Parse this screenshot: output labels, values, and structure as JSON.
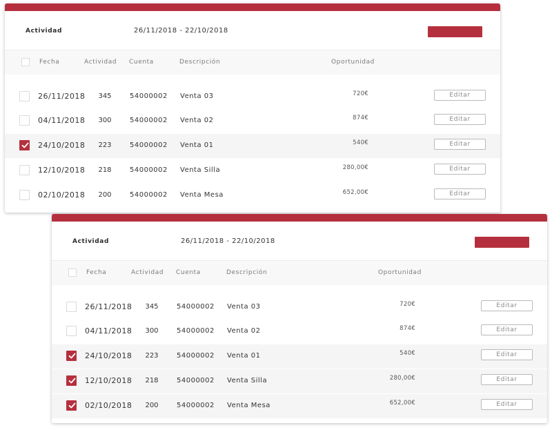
{
  "colors": {
    "accent": "#b5303e"
  },
  "cards": [
    {
      "title": "Actividad",
      "date_range": "26/11/2018 - 22/10/2018",
      "columns": [
        "Fecha",
        "Actividad",
        "Cuenta",
        "Descripción",
        "Oportunidad"
      ],
      "rows": [
        {
          "date": "26/11/2018",
          "activity": "345",
          "account": "54000002",
          "description": "Venta 03",
          "opportunity": "720€",
          "edit": "Editar",
          "checked": false
        },
        {
          "date": "04/11/2018",
          "activity": "300",
          "account": "54000002",
          "description": "Venta 02",
          "opportunity": "874€",
          "edit": "Editar",
          "checked": false
        },
        {
          "date": "24/10/2018",
          "activity": "223",
          "account": "54000002",
          "description": "Venta 01",
          "opportunity": "540€",
          "edit": "Editar",
          "checked": true
        },
        {
          "date": "12/10/2018",
          "activity": "218",
          "account": "54000002",
          "description": "Venta Silla",
          "opportunity": "280,00€",
          "edit": "Editar",
          "checked": false
        },
        {
          "date": "02/10/2018",
          "activity": "200",
          "account": "54000002",
          "description": "Venta Mesa",
          "opportunity": "652,00€",
          "edit": "Editar",
          "checked": false
        }
      ]
    },
    {
      "title": "Actividad",
      "date_range": "26/11/2018 - 22/10/2018",
      "columns": [
        "Fecha",
        "Actividad",
        "Cuenta",
        "Descripción",
        "Oportunidad"
      ],
      "rows": [
        {
          "date": "26/11/2018",
          "activity": "345",
          "account": "54000002",
          "description": "Venta 03",
          "opportunity": "720€",
          "edit": "Editar",
          "checked": false
        },
        {
          "date": "04/11/2018",
          "activity": "300",
          "account": "54000002",
          "description": "Venta 02",
          "opportunity": "874€",
          "edit": "Editar",
          "checked": false
        },
        {
          "date": "24/10/2018",
          "activity": "223",
          "account": "54000002",
          "description": "Venta 01",
          "opportunity": "540€",
          "edit": "Editar",
          "checked": true
        },
        {
          "date": "12/10/2018",
          "activity": "218",
          "account": "54000002",
          "description": "Venta Silla",
          "opportunity": "280,00€",
          "edit": "Editar",
          "checked": true
        },
        {
          "date": "02/10/2018",
          "activity": "200",
          "account": "54000002",
          "description": "Venta Mesa",
          "opportunity": "652,00€",
          "edit": "Editar",
          "checked": true
        }
      ]
    }
  ]
}
